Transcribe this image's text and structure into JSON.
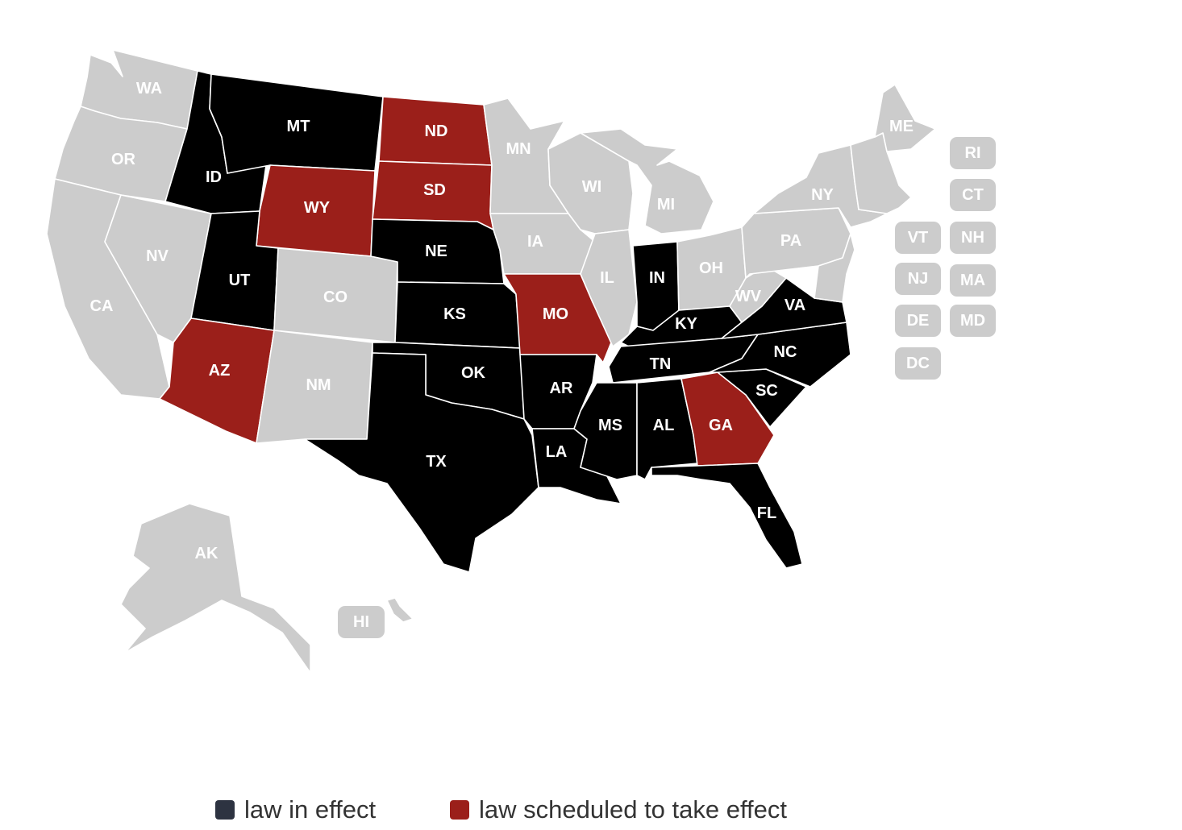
{
  "colors": {
    "law_in_effect": "#000000",
    "scheduled": "#9b1f1a",
    "none": "#cccccc",
    "legend_in_effect_swatch": "#2d3341"
  },
  "legend": {
    "in_effect": "law in effect",
    "scheduled": "law scheduled to take effect"
  },
  "states": {
    "WA": {
      "label": "WA",
      "status": "none"
    },
    "OR": {
      "label": "OR",
      "status": "none"
    },
    "CA": {
      "label": "CA",
      "status": "none"
    },
    "NV": {
      "label": "NV",
      "status": "none"
    },
    "ID": {
      "label": "ID",
      "status": "law_in_effect"
    },
    "MT": {
      "label": "MT",
      "status": "law_in_effect"
    },
    "WY": {
      "label": "WY",
      "status": "scheduled"
    },
    "UT": {
      "label": "UT",
      "status": "law_in_effect"
    },
    "AZ": {
      "label": "AZ",
      "status": "scheduled"
    },
    "CO": {
      "label": "CO",
      "status": "none"
    },
    "NM": {
      "label": "NM",
      "status": "none"
    },
    "ND": {
      "label": "ND",
      "status": "scheduled"
    },
    "SD": {
      "label": "SD",
      "status": "scheduled"
    },
    "NE": {
      "label": "NE",
      "status": "law_in_effect"
    },
    "KS": {
      "label": "KS",
      "status": "law_in_effect"
    },
    "OK": {
      "label": "OK",
      "status": "law_in_effect"
    },
    "TX": {
      "label": "TX",
      "status": "law_in_effect"
    },
    "MN": {
      "label": "MN",
      "status": "none"
    },
    "IA": {
      "label": "IA",
      "status": "none"
    },
    "MO": {
      "label": "MO",
      "status": "scheduled"
    },
    "AR": {
      "label": "AR",
      "status": "law_in_effect"
    },
    "LA": {
      "label": "LA",
      "status": "law_in_effect"
    },
    "WI": {
      "label": "WI",
      "status": "none"
    },
    "IL": {
      "label": "IL",
      "status": "none"
    },
    "MI": {
      "label": "MI",
      "status": "none"
    },
    "IN": {
      "label": "IN",
      "status": "law_in_effect"
    },
    "OH": {
      "label": "OH",
      "status": "none"
    },
    "KY": {
      "label": "KY",
      "status": "law_in_effect"
    },
    "TN": {
      "label": "TN",
      "status": "law_in_effect"
    },
    "MS": {
      "label": "MS",
      "status": "law_in_effect"
    },
    "AL": {
      "label": "AL",
      "status": "law_in_effect"
    },
    "GA": {
      "label": "GA",
      "status": "scheduled"
    },
    "FL": {
      "label": "FL",
      "status": "law_in_effect"
    },
    "SC": {
      "label": "SC",
      "status": "law_in_effect"
    },
    "NC": {
      "label": "NC",
      "status": "law_in_effect"
    },
    "VA": {
      "label": "VA",
      "status": "law_in_effect"
    },
    "WV": {
      "label": "WV",
      "status": "none"
    },
    "PA": {
      "label": "PA",
      "status": "none"
    },
    "NY": {
      "label": "NY",
      "status": "none"
    },
    "ME": {
      "label": "ME",
      "status": "none"
    },
    "AK": {
      "label": "AK",
      "status": "none"
    },
    "HI": {
      "label": "HI",
      "status": "none"
    }
  },
  "small_states": [
    {
      "label": "RI",
      "status": "none"
    },
    {
      "label": "CT",
      "status": "none"
    },
    {
      "label": "VT",
      "status": "none"
    },
    {
      "label": "NH",
      "status": "none"
    },
    {
      "label": "NJ",
      "status": "none"
    },
    {
      "label": "MA",
      "status": "none"
    },
    {
      "label": "DE",
      "status": "none"
    },
    {
      "label": "MD",
      "status": "none"
    },
    {
      "label": "DC",
      "status": "none"
    }
  ]
}
